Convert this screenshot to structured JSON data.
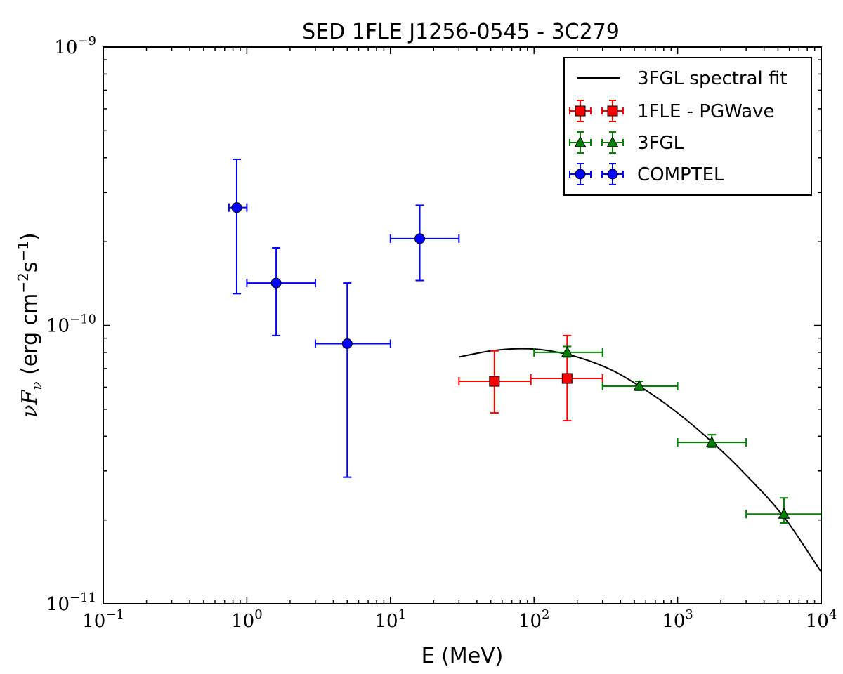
{
  "chart_data": {
    "type": "scatter",
    "title": "SED 1FLE J1256-0545 - 3C279",
    "xlabel": "E (MeV)",
    "ylabel": {
      "prefix": "νF",
      "subscript": "ν",
      "unit_open": " (erg cm",
      "exp1": "−2",
      "unit_mid": "s",
      "exp2": "−1",
      "unit_close": ")"
    },
    "x_scale": "log",
    "y_scale": "log",
    "xlim": [
      0.1,
      10000
    ],
    "ylim": [
      1e-11,
      1e-09
    ],
    "x_ticks": [
      {
        "value": 0.1,
        "base": "10",
        "exp": "−1"
      },
      {
        "value": 1,
        "base": "10",
        "exp": "0"
      },
      {
        "value": 10,
        "base": "10",
        "exp": "1"
      },
      {
        "value": 100,
        "base": "10",
        "exp": "2"
      },
      {
        "value": 1000,
        "base": "10",
        "exp": "3"
      },
      {
        "value": 10000,
        "base": "10",
        "exp": "4"
      }
    ],
    "y_ticks": [
      {
        "value": 1e-11,
        "base": "10",
        "exp": "−11"
      },
      {
        "value": 1e-10,
        "base": "10",
        "exp": "−10"
      },
      {
        "value": 1e-09,
        "base": "10",
        "exp": "−9"
      }
    ],
    "legend_position": "top-right",
    "series": [
      {
        "name": "3FGL spectral fit",
        "kind": "line",
        "color": "#000000",
        "points": [
          {
            "x": 30,
            "y": 7.7e-11
          },
          {
            "x": 50,
            "y": 8.1e-11
          },
          {
            "x": 80,
            "y": 8.25e-11
          },
          {
            "x": 120,
            "y": 8.15e-11
          },
          {
            "x": 200,
            "y": 7.7e-11
          },
          {
            "x": 350,
            "y": 6.9e-11
          },
          {
            "x": 600,
            "y": 5.85e-11
          },
          {
            "x": 1000,
            "y": 4.85e-11
          },
          {
            "x": 1800,
            "y": 3.75e-11
          },
          {
            "x": 3000,
            "y": 2.9e-11
          },
          {
            "x": 5500,
            "y": 2.05e-11
          },
          {
            "x": 10000,
            "y": 1.3e-11
          }
        ]
      },
      {
        "name": "1FLE - PGWave",
        "kind": "errorbar",
        "marker": "square",
        "color": "#ff0000",
        "points": [
          {
            "x": 53,
            "y": 6.3e-11,
            "xlo": 30,
            "xhi": 95,
            "ylo": 4.85e-11,
            "yhi": 8.1e-11
          },
          {
            "x": 170,
            "y": 6.45e-11,
            "xlo": 95,
            "xhi": 300,
            "ylo": 4.55e-11,
            "yhi": 9.2e-11
          }
        ]
      },
      {
        "name": "3FGL",
        "kind": "errorbar",
        "marker": "triangle",
        "color": "#008000",
        "points": [
          {
            "x": 170,
            "y": 8e-11,
            "xlo": 100,
            "xhi": 300,
            "ylo": 7.7e-11,
            "yhi": 8.4e-11
          },
          {
            "x": 540,
            "y": 6.05e-11,
            "xlo": 300,
            "xhi": 1000,
            "ylo": 5.85e-11,
            "yhi": 6.3e-11
          },
          {
            "x": 1730,
            "y": 3.8e-11,
            "xlo": 1000,
            "xhi": 3000,
            "ylo": 3.65e-11,
            "yhi": 4.05e-11
          },
          {
            "x": 5500,
            "y": 2.1e-11,
            "xlo": 3000,
            "xhi": 10000,
            "ylo": 1.95e-11,
            "yhi": 2.4e-11
          }
        ]
      },
      {
        "name": "COMPTEL",
        "kind": "errorbar",
        "marker": "circle",
        "color": "#0000ff",
        "points": [
          {
            "x": 0.85,
            "y": 2.65e-10,
            "xlo": 0.75,
            "xhi": 1.0,
            "ylo": 1.3e-10,
            "yhi": 3.95e-10
          },
          {
            "x": 1.6,
            "y": 1.42e-10,
            "xlo": 1.0,
            "xhi": 3.0,
            "ylo": 9.2e-11,
            "yhi": 1.9e-10
          },
          {
            "x": 5.0,
            "y": 8.6e-11,
            "xlo": 3.0,
            "xhi": 10.0,
            "ylo": 2.85e-11,
            "yhi": 1.42e-10
          },
          {
            "x": 16,
            "y": 2.05e-10,
            "xlo": 10,
            "xhi": 30,
            "ylo": 1.45e-10,
            "yhi": 2.7e-10
          }
        ]
      }
    ]
  }
}
